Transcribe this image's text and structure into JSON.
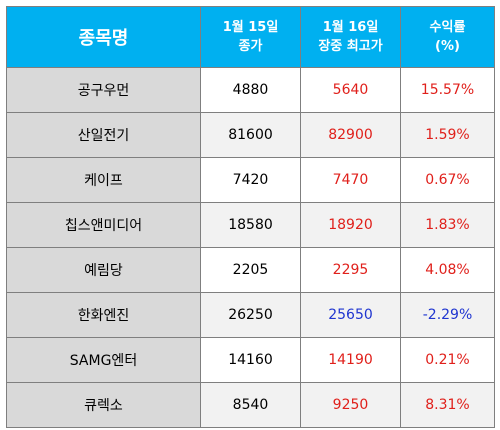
{
  "header": {
    "col_name": "종목명",
    "col_close": [
      "1월 15일",
      "종가"
    ],
    "col_high": [
      "1월 16일",
      "장중 최고가"
    ],
    "col_return": [
      "수익률",
      "(%)"
    ]
  },
  "rows": [
    {
      "name": "공구우먼",
      "close": "4880",
      "high": "5640",
      "return": "15.57%",
      "direction": "up"
    },
    {
      "name": "산일전기",
      "close": "81600",
      "high": "82900",
      "return": "1.59%",
      "direction": "up"
    },
    {
      "name": "케이프",
      "close": "7420",
      "high": "7470",
      "return": "0.67%",
      "direction": "up"
    },
    {
      "name": "칩스앤미디어",
      "close": "18580",
      "high": "18920",
      "return": "1.83%",
      "direction": "up"
    },
    {
      "name": "예림당",
      "close": "2205",
      "high": "2295",
      "return": "4.08%",
      "direction": "up"
    },
    {
      "name": "한화엔진",
      "close": "26250",
      "high": "25650",
      "return": "-2.29%",
      "direction": "down"
    },
    {
      "name": "SAMG엔터",
      "close": "14160",
      "high": "14190",
      "return": "0.21%",
      "direction": "up"
    },
    {
      "name": "큐렉소",
      "close": "8540",
      "high": "9250",
      "return": "8.31%",
      "direction": "up"
    }
  ],
  "colors": {
    "header_bg": "#00b0f0",
    "name_bg": "#d9d9d9",
    "up": "#e0201b",
    "down": "#1f35d0"
  }
}
